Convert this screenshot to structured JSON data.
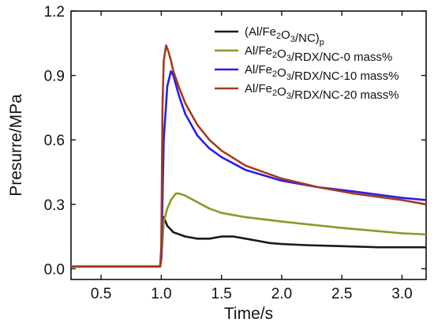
{
  "chart_data": {
    "type": "line",
    "xlabel": "Time/s",
    "ylabel": "Presurre/MPa",
    "xlim": [
      0.25,
      3.2
    ],
    "ylim": [
      -0.05,
      1.2
    ],
    "x_ticks": [
      0.5,
      1.0,
      1.5,
      2.0,
      2.5,
      3.0
    ],
    "x_tick_labels": [
      "0.5",
      "1.0",
      "1.5",
      "2.0",
      "2.5",
      "3.0"
    ],
    "y_ticks": [
      0.0,
      0.3,
      0.6,
      0.9,
      1.2
    ],
    "y_tick_labels": [
      "0.0",
      "0.3",
      "0.6",
      "0.9",
      "1.2"
    ],
    "legend_position": "top-right",
    "series": [
      {
        "name": "(Al/Fe2O3/NC)p",
        "color": "#1a1a1a",
        "x": [
          0.25,
          0.99,
          1.0,
          1.02,
          1.05,
          1.1,
          1.2,
          1.3,
          1.4,
          1.5,
          1.6,
          1.7,
          1.8,
          1.9,
          2.0,
          2.2,
          2.5,
          2.8,
          3.0,
          3.2
        ],
        "y": [
          0.01,
          0.01,
          0.05,
          0.24,
          0.2,
          0.17,
          0.15,
          0.14,
          0.14,
          0.15,
          0.15,
          0.14,
          0.13,
          0.12,
          0.115,
          0.11,
          0.105,
          0.1,
          0.1,
          0.1
        ]
      },
      {
        "name": "Al/Fe2O3/RDX/NC-0 mass%",
        "color": "#8a9a2a",
        "x": [
          0.25,
          0.99,
          1.0,
          1.02,
          1.05,
          1.08,
          1.12,
          1.15,
          1.2,
          1.3,
          1.4,
          1.5,
          1.7,
          2.0,
          2.5,
          3.0,
          3.2
        ],
        "y": [
          0.01,
          0.01,
          0.05,
          0.22,
          0.28,
          0.32,
          0.35,
          0.35,
          0.34,
          0.31,
          0.28,
          0.26,
          0.24,
          0.22,
          0.19,
          0.165,
          0.16
        ]
      },
      {
        "name": "Al/Fe2O3/RDX/NC-10 mass%",
        "color": "#2b1de8",
        "x": [
          0.25,
          0.99,
          1.0,
          1.02,
          1.05,
          1.08,
          1.1,
          1.15,
          1.2,
          1.3,
          1.4,
          1.5,
          1.7,
          2.0,
          2.3,
          2.6,
          3.0,
          3.2
        ],
        "y": [
          0.01,
          0.01,
          0.05,
          0.6,
          0.85,
          0.92,
          0.9,
          0.8,
          0.72,
          0.62,
          0.56,
          0.52,
          0.46,
          0.41,
          0.38,
          0.36,
          0.33,
          0.32
        ]
      },
      {
        "name": "Al/Fe2O3/RDX/NC-20 mass%",
        "color": "#a33b1e",
        "x": [
          0.25,
          0.99,
          1.0,
          1.01,
          1.02,
          1.04,
          1.06,
          1.08,
          1.1,
          1.15,
          1.2,
          1.3,
          1.4,
          1.5,
          1.7,
          2.0,
          2.3,
          2.6,
          3.0,
          3.2
        ],
        "y": [
          0.01,
          0.01,
          0.1,
          0.75,
          0.97,
          1.04,
          1.01,
          0.97,
          0.92,
          0.84,
          0.77,
          0.67,
          0.6,
          0.55,
          0.48,
          0.42,
          0.38,
          0.35,
          0.32,
          0.3
        ]
      }
    ]
  },
  "legend": [
    {
      "before": "(Al/Fe",
      "sub1": "2",
      "mid": "O",
      "sub2": "3",
      "after": "/NC)",
      "sub3": "p"
    },
    {
      "before": "Al/Fe",
      "sub1": "2",
      "mid": "O",
      "sub2": "3",
      "after": "/RDX/NC-0 mass%",
      "sub3": ""
    },
    {
      "before": "Al/Fe",
      "sub1": "2",
      "mid": "O",
      "sub2": "3",
      "after": "/RDX/NC-10 mass%",
      "sub3": ""
    },
    {
      "before": "Al/Fe",
      "sub1": "2",
      "mid": "O",
      "sub2": "3",
      "after": "/RDX/NC-20 mass%",
      "sub3": ""
    }
  ]
}
